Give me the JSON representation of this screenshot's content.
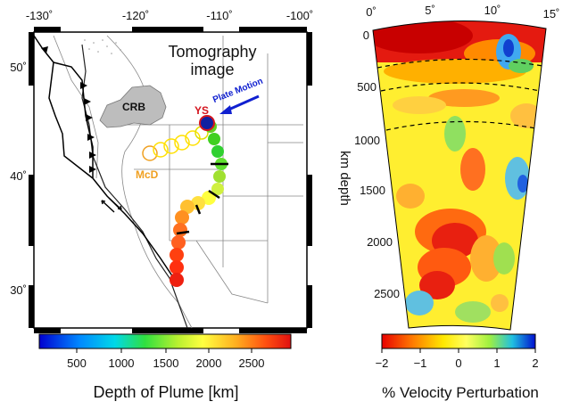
{
  "map": {
    "lon_ticks": [
      "-130˚",
      "-120˚",
      "-110˚",
      "-100˚"
    ],
    "lat_ticks": [
      "50˚",
      "40˚",
      "30˚"
    ],
    "tomo_title_line1": "Tomography",
    "tomo_title_line2": "image",
    "label_crb": "CRB",
    "label_ys": "YS",
    "label_mcd": "McD",
    "label_plate_motion": "Plate Motion",
    "colorbar_ticks": [
      "500",
      "1000",
      "1500",
      "2000",
      "2500"
    ],
    "colorbar_title": "Depth of Plume [km]",
    "colors": {
      "ys": "#d4141e",
      "mcd": "#f0a020",
      "plate_arrow": "#1020d0"
    }
  },
  "section": {
    "angle_ticks": [
      "0˚",
      "5˚",
      "10˚",
      "15˚"
    ],
    "depth_ticks": [
      "0",
      "500",
      "1000",
      "1500",
      "2000",
      "2500"
    ],
    "depth_label": "km depth",
    "colorbar_ticks": [
      "−2",
      "−1",
      "0",
      "1",
      "2"
    ],
    "colorbar_title": "% Velocity Perturbation"
  }
}
